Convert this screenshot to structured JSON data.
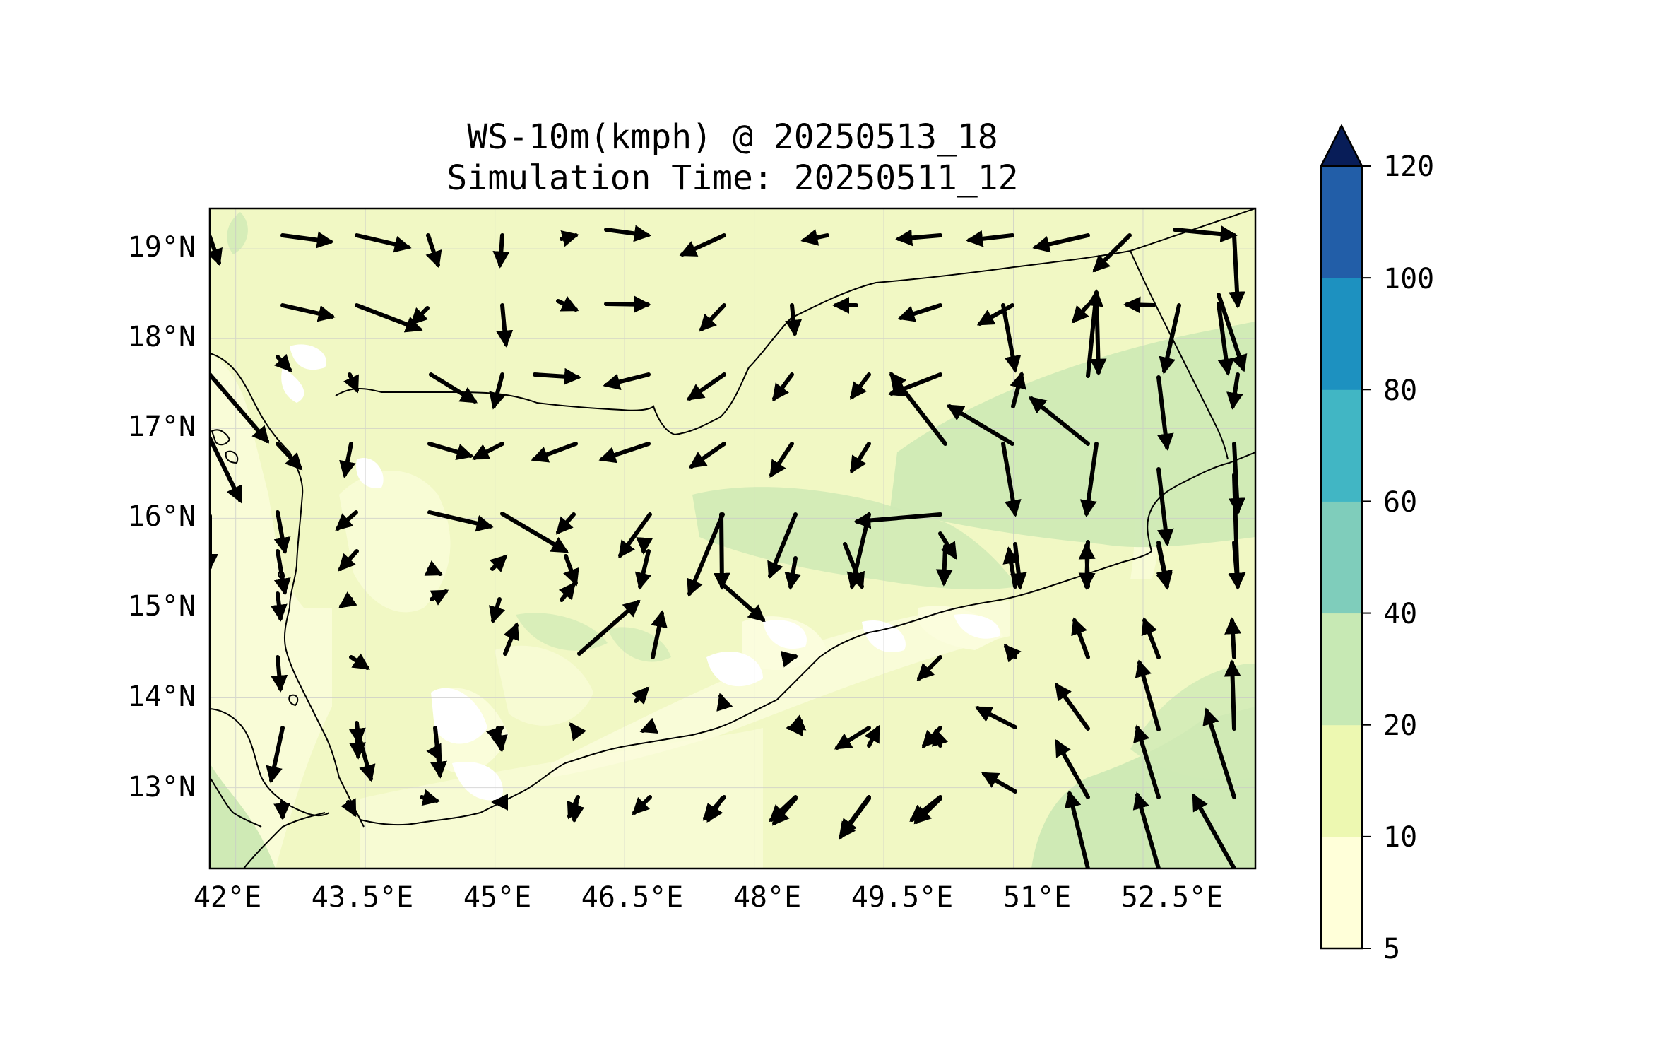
{
  "title": {
    "line1": "WS-10m(kmph) @ 20250513_18",
    "line2": "Simulation Time: 20250511_12"
  },
  "map": {
    "lon_range": [
      41.7,
      53.8
    ],
    "lat_range": [
      12.1,
      19.45
    ],
    "lon_tick_labels": [
      "42°E",
      "43.5°E",
      "45°E",
      "46.5°E",
      "48°E",
      "49.5°E",
      "51°E",
      "52.5°E"
    ],
    "lon_tick_values": [
      42,
      43.5,
      45,
      46.5,
      48,
      49.5,
      51,
      52.5
    ],
    "lat_tick_labels": [
      "13°N",
      "14°N",
      "15°N",
      "16°N",
      "17°N",
      "18°N",
      "19°N"
    ],
    "lat_tick_values": [
      13,
      14,
      15,
      16,
      17,
      18,
      19
    ],
    "gridlines": true,
    "background_color": "#f1f8c4"
  },
  "colorbar": {
    "tick_labels": [
      "5",
      "10",
      "20",
      "40",
      "60",
      "80",
      "100",
      "120"
    ],
    "levels": [
      5,
      10,
      20,
      40,
      60,
      80,
      100,
      120
    ],
    "colors": [
      "#ffffd9",
      "#edf8b1",
      "#c7e9b4",
      "#7fcdbb",
      "#41b6c4",
      "#1d91c0",
      "#225ea8",
      "#253494"
    ],
    "extend_color": "#081d58",
    "extend": "max"
  }
}
